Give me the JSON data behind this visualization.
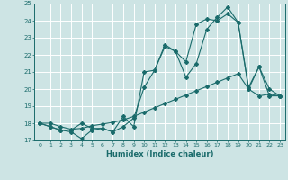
{
  "xlabel": "Humidex (Indice chaleur)",
  "xlim": [
    -0.5,
    23.5
  ],
  "ylim": [
    17,
    25
  ],
  "yticks": [
    17,
    18,
    19,
    20,
    21,
    22,
    23,
    24,
    25
  ],
  "xticks": [
    0,
    1,
    2,
    3,
    4,
    5,
    6,
    7,
    8,
    9,
    10,
    11,
    12,
    13,
    14,
    15,
    16,
    17,
    18,
    19,
    20,
    21,
    22,
    23
  ],
  "bg_color": "#cde4e4",
  "line_color": "#1a6b6b",
  "grid_color": "#ffffff",
  "line1_x": [
    0,
    1,
    2,
    3,
    4,
    5,
    6,
    7,
    8,
    9,
    10,
    11,
    12,
    13,
    14,
    15,
    16,
    17,
    18,
    19,
    20,
    21,
    22,
    23
  ],
  "line1_y": [
    18.0,
    17.8,
    17.6,
    17.5,
    17.1,
    17.6,
    17.7,
    17.5,
    17.8,
    18.3,
    20.1,
    21.1,
    22.5,
    22.2,
    20.7,
    21.5,
    23.5,
    24.2,
    24.8,
    23.9,
    20.0,
    21.3,
    19.6,
    19.6
  ],
  "line2_x": [
    0,
    1,
    2,
    3,
    4,
    5,
    6,
    7,
    8,
    9,
    10,
    11,
    12,
    13,
    14,
    15,
    16,
    17,
    18,
    19,
    20,
    21,
    22,
    23
  ],
  "line2_y": [
    18.0,
    17.8,
    17.6,
    17.6,
    18.0,
    17.7,
    17.7,
    17.5,
    18.4,
    17.8,
    21.0,
    21.1,
    22.6,
    22.2,
    21.6,
    23.8,
    24.1,
    24.0,
    24.4,
    23.9,
    20.1,
    21.3,
    20.0,
    19.6
  ],
  "line3_x": [
    0,
    1,
    2,
    3,
    4,
    5,
    6,
    7,
    8,
    9,
    10,
    11,
    12,
    13,
    14,
    15,
    16,
    17,
    18,
    19,
    20,
    21,
    22,
    23
  ],
  "line3_y": [
    18.0,
    18.0,
    17.8,
    17.65,
    17.7,
    17.85,
    17.95,
    18.05,
    18.2,
    18.4,
    18.65,
    18.9,
    19.15,
    19.4,
    19.65,
    19.9,
    20.15,
    20.4,
    20.65,
    20.9,
    20.0,
    19.6,
    19.7,
    19.6
  ]
}
